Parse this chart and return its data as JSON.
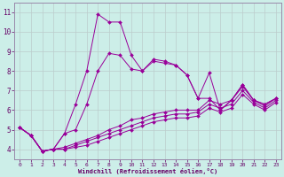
{
  "xlabel": "Windchill (Refroidissement éolien,°C)",
  "bg_color": "#cceee8",
  "grid_color": "#bbcccc",
  "line_color": "#990099",
  "xlim": [
    -0.5,
    23.5
  ],
  "ylim": [
    3.5,
    11.5
  ],
  "yticks": [
    4,
    5,
    6,
    7,
    8,
    9,
    10,
    11
  ],
  "xticks": [
    0,
    1,
    2,
    3,
    4,
    5,
    6,
    7,
    8,
    9,
    10,
    11,
    12,
    13,
    14,
    15,
    16,
    17,
    18,
    19,
    20,
    21,
    22,
    23
  ],
  "series_main1": [
    5.1,
    4.7,
    3.9,
    4.0,
    4.8,
    6.3,
    8.0,
    10.9,
    10.5,
    10.5,
    8.8,
    8.0,
    8.6,
    8.5,
    8.3,
    7.8,
    6.6,
    7.9,
    6.0,
    6.5,
    7.3,
    6.5,
    6.3,
    6.6
  ],
  "series_main2": [
    5.1,
    4.7,
    3.9,
    4.0,
    4.8,
    5.0,
    6.3,
    8.0,
    8.9,
    8.8,
    8.1,
    8.0,
    8.5,
    8.4,
    8.3,
    7.8,
    6.6,
    6.6,
    6.0,
    6.5,
    7.3,
    6.5,
    6.3,
    6.6
  ],
  "series_linear1": [
    5.1,
    4.7,
    3.9,
    4.0,
    4.1,
    4.3,
    4.5,
    4.7,
    5.0,
    5.2,
    5.5,
    5.6,
    5.8,
    5.9,
    6.0,
    6.0,
    6.0,
    6.5,
    6.3,
    6.5,
    7.2,
    6.5,
    6.2,
    6.6
  ],
  "series_linear2": [
    5.1,
    4.7,
    3.9,
    4.0,
    4.0,
    4.2,
    4.4,
    4.6,
    4.8,
    5.0,
    5.2,
    5.4,
    5.6,
    5.7,
    5.8,
    5.8,
    5.9,
    6.3,
    6.1,
    6.3,
    7.0,
    6.4,
    6.1,
    6.5
  ],
  "series_linear3": [
    5.1,
    4.7,
    3.9,
    4.0,
    4.0,
    4.1,
    4.2,
    4.4,
    4.6,
    4.8,
    5.0,
    5.2,
    5.4,
    5.5,
    5.6,
    5.6,
    5.7,
    6.1,
    5.9,
    6.1,
    6.8,
    6.3,
    6.0,
    6.4
  ]
}
